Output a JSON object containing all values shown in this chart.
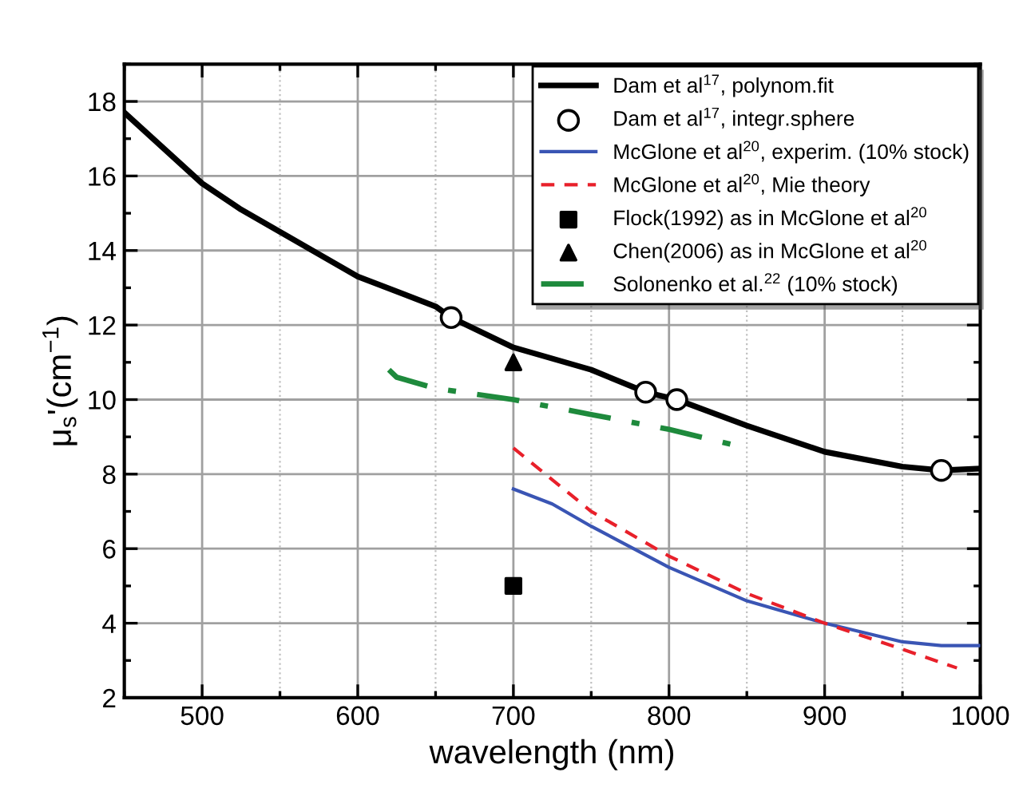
{
  "chart_data": {
    "type": "line",
    "xlabel": "wavelength (nm)",
    "ylabel": "μ$_{s}$'(cm$^{−1}$)",
    "xlim": [
      450,
      1000
    ],
    "ylim": [
      2,
      19
    ],
    "xticks": [
      500,
      600,
      700,
      800,
      900,
      1000
    ],
    "yticks": [
      2,
      4,
      6,
      8,
      10,
      12,
      14,
      16,
      18
    ],
    "grid": true,
    "legend": "top right",
    "series": [
      {
        "name": "Dam et al$^{17}$, polynom.fit",
        "color": "#000000",
        "line_style": "solid",
        "marker": "none",
        "x": [
          450,
          500,
          525,
          550,
          600,
          650,
          660,
          700,
          750,
          785,
          805,
          850,
          900,
          950,
          975,
          1000
        ],
        "values": [
          17.7,
          15.8,
          15.1,
          14.5,
          13.3,
          12.5,
          12.2,
          11.4,
          10.8,
          10.2,
          10.0,
          9.3,
          8.6,
          8.2,
          8.1,
          8.15
        ]
      },
      {
        "name": "Dam et al$^{17}$, integr.sphere",
        "type": "scatter",
        "color": "#000000",
        "marker": "circle",
        "x": [
          660,
          785,
          805,
          975
        ],
        "values": [
          12.2,
          10.2,
          10.0,
          8.1
        ]
      },
      {
        "name": "McGlone et al$^{20}$, experim. (10% stock)",
        "color": "#3a55b4",
        "line_style": "solid",
        "marker": "none",
        "x": [
          700,
          725,
          750,
          800,
          850,
          900,
          950,
          975,
          1000
        ],
        "values": [
          7.6,
          7.2,
          6.6,
          5.5,
          4.6,
          4.0,
          3.5,
          3.4,
          3.4
        ]
      },
      {
        "name": "McGlone et al$^{20}$, Mie theory",
        "color": "#e8202a",
        "line_style": "dashed",
        "marker": "none",
        "x": [
          700,
          750,
          800,
          850,
          900,
          950,
          985
        ],
        "values": [
          8.7,
          7.0,
          5.8,
          4.8,
          4.0,
          3.3,
          2.8
        ]
      },
      {
        "name": "Flock(1992) as in McGlone et al$^{20}$",
        "type": "scatter",
        "color": "#000000",
        "marker": "square",
        "x": [
          700
        ],
        "values": [
          5
        ]
      },
      {
        "name": "Chen(2006) as in McGlone et al$^{20}$",
        "type": "scatter",
        "color": "#000000",
        "marker": "triangle",
        "x": [
          700
        ],
        "values": [
          11.0
        ]
      },
      {
        "name": "Solonenko et al.$^{22}$ (10% stock)",
        "color": "#1e8a3c",
        "line_style": "dashdot",
        "marker": "none",
        "x": [
          620,
          625,
          650,
          700,
          750,
          800,
          840
        ],
        "values": [
          10.8,
          10.6,
          10.3,
          10.0,
          9.6,
          9.2,
          8.8
        ]
      }
    ]
  }
}
